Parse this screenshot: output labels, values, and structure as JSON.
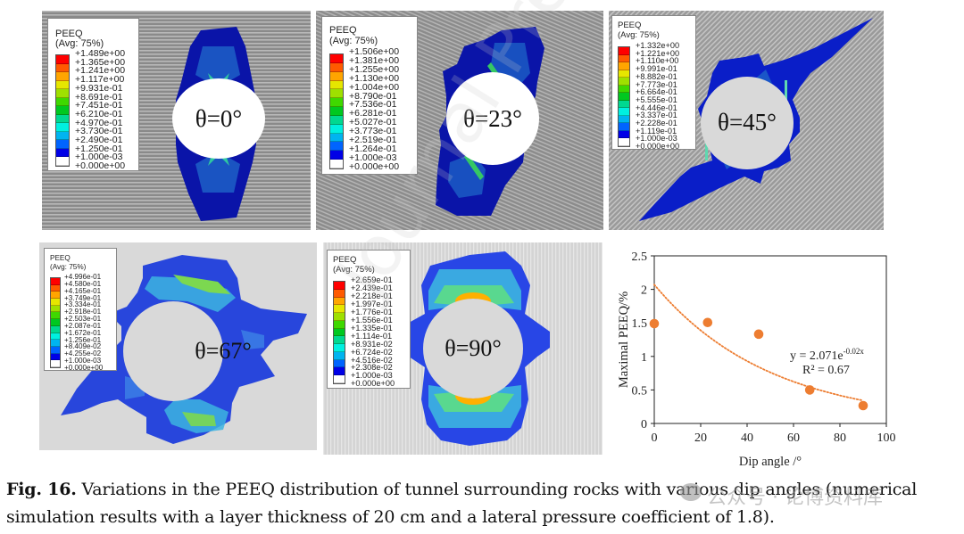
{
  "figure": {
    "caption_label": "Fig. 16.",
    "caption_line1": " Variations in the PEEQ distribution of tunnel surrounding rocks with various dip angles (numerical",
    "caption_line2": "simulation results with a layer thickness of 20 cm and a lateral pressure coefficient of 1.8).",
    "watermark_text": "公众号 · 论博资料库",
    "diagonal_watermark": "Journal Pre-proof"
  },
  "legend_colors": [
    "#ff0000",
    "#ff5a00",
    "#ffa500",
    "#e6e600",
    "#9fe000",
    "#3fd800",
    "#00c820",
    "#00d890",
    "#00f0e0",
    "#00b4f0",
    "#0064ff",
    "#0000e6",
    "#ffffff"
  ],
  "panels": [
    {
      "id": "theta-0",
      "label": "θ=0°",
      "legend_title": "PEEQ",
      "legend_subtitle": "(Avg: 75%)",
      "legend_values": [
        "+1.489e+00",
        "+1.365e+00",
        "+1.241e+00",
        "+1.117e+00",
        "+9.931e-01",
        "+8.691e-01",
        "+7.451e-01",
        "+6.210e-01",
        "+4.970e-01",
        "+3.730e-01",
        "+2.490e-01",
        "+1.250e-01",
        "+1.000e-03",
        "+0.000e+00"
      ]
    },
    {
      "id": "theta-23",
      "label": "θ=23°",
      "legend_title": "PEEQ",
      "legend_subtitle": "(Avg: 75%)",
      "legend_values": [
        "+1.506e+00",
        "+1.381e+00",
        "+1.255e+00",
        "+1.130e+00",
        "+1.004e+00",
        "+8.790e-01",
        "+7.536e-01",
        "+6.281e-01",
        "+5.027e-01",
        "+3.773e-01",
        "+2.519e-01",
        "+1.264e-01",
        "+1.000e-03",
        "+0.000e+00"
      ]
    },
    {
      "id": "theta-45",
      "label": "θ=45°",
      "legend_title": "PEEQ",
      "legend_subtitle": "(Avg: 75%)",
      "legend_values": [
        "+1.332e+00",
        "+1.221e+00",
        "+1.110e+00",
        "+9.991e-01",
        "+8.882e-01",
        "+7.773e-01",
        "+6.664e-01",
        "+5.555e-01",
        "+4.446e-01",
        "+3.337e-01",
        "+2.228e-01",
        "+1.119e-01",
        "+1.000e-03",
        "+0.000e+00"
      ]
    },
    {
      "id": "theta-67",
      "label": "θ=67°",
      "legend_title": "PEEQ",
      "legend_subtitle": "(Avg: 75%)",
      "legend_values": [
        "+4.996e-01",
        "+4.580e-01",
        "+4.165e-01",
        "+3.749e-01",
        "+3.334e-01",
        "+2.918e-01",
        "+2.503e-01",
        "+2.087e-01",
        "+1.672e-01",
        "+1.256e-01",
        "+8.409e-02",
        "+4.255e-02",
        "+1.000e-03",
        "+0.000e+00"
      ]
    },
    {
      "id": "theta-90",
      "label": "θ=90°",
      "legend_title": "PEEQ",
      "legend_subtitle": "(Avg: 75%)",
      "legend_values": [
        "+2.659e-01",
        "+2.439e-01",
        "+2.218e-01",
        "+1.997e-01",
        "+1.776e-01",
        "+1.556e-01",
        "+1.335e-01",
        "+1.114e-01",
        "+8.931e-02",
        "+6.724e-02",
        "+4.516e-02",
        "+2.308e-02",
        "+1.000e-03",
        "+0.000e+00"
      ]
    }
  ],
  "chart_data": {
    "type": "scatter",
    "title": "",
    "xlabel": "Dip angle /°",
    "ylabel": "Maximal  PEEQ/%",
    "xlim": [
      0,
      100
    ],
    "ylim": [
      0,
      2.5
    ],
    "xticks": [
      0,
      20,
      40,
      60,
      80,
      100
    ],
    "yticks": [
      0,
      0.5,
      1,
      1.5,
      2,
      2.5
    ],
    "xtick_labels": [
      "0",
      "20",
      "40",
      "60",
      "80",
      "100"
    ],
    "ytick_labels": [
      "0",
      "0.5",
      "1",
      "1.5",
      "2",
      "2.5"
    ],
    "grid": false,
    "series": [
      {
        "name": "Maximal PEEQ",
        "x": [
          0,
          23,
          45,
          67,
          90
        ],
        "y": [
          1.489,
          1.506,
          1.332,
          0.4996,
          0.2659
        ],
        "color": "#ed7d31"
      }
    ],
    "trendline": {
      "type": "exponential",
      "a": 2.071,
      "b": -0.02,
      "x_range": [
        0,
        90
      ],
      "style": "dotted",
      "color": "#ed7d31"
    },
    "annotations": [
      {
        "text_main": "y = 2.071e",
        "text_sup": "-0.02x"
      },
      {
        "text_main": "R² = 0.67"
      }
    ]
  }
}
